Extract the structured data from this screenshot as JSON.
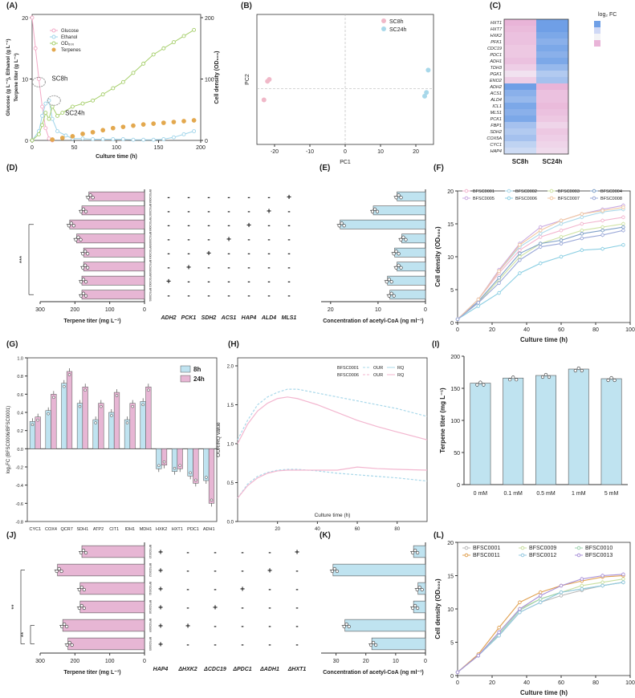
{
  "colors": {
    "pink": "#e7b6d4",
    "blue": "#bfe3f0",
    "grid": "#dddddd",
    "axis": "#333333",
    "glucose": "#f2a9c6",
    "ethanol": "#9fd4ea",
    "od": "#a6cf6b",
    "terp": "#e3a84e",
    "hm_pink": "#e9b4d8",
    "hm_blue": "#6f9fe6"
  },
  "panel_labels": [
    "(A)",
    "(B)",
    "(C)",
    "(D)",
    "(E)",
    "(F)",
    "(G)",
    "(H)",
    "(I)",
    "(J)",
    "(K)",
    "(L)"
  ],
  "chart_data": [
    {
      "id": "A",
      "type": "line",
      "xlabel": "Culture time (h)",
      "ylabel_left": "Glucose (g L⁻¹), Ethanol (g L⁻¹)",
      "ylabel_left2": "Terpene titer (g L⁻¹)",
      "ylabel_right": "Cell density (OD₆₀₀)",
      "xlim": [
        0,
        200
      ],
      "xticks": [
        "0",
        "50",
        "100",
        "150",
        "200"
      ],
      "ylim_left": [
        0,
        20
      ],
      "yticks_left": [
        "0",
        "10",
        "20"
      ],
      "ylim_right": [
        0,
        200
      ],
      "yticks_right": [
        "0",
        "100",
        "200"
      ],
      "annotations": [
        "SC8h",
        "SC24h"
      ],
      "legend": [
        "Glucose",
        "Ethanol",
        "OD₆₀₀",
        "Terpenes"
      ],
      "series": [
        {
          "name": "Glucose",
          "axis": "left",
          "x": [
            0,
            4,
            8,
            12,
            16,
            20,
            24
          ],
          "y": [
            20,
            15,
            10,
            5.5,
            2,
            0.3,
            0
          ]
        },
        {
          "name": "Ethanol",
          "axis": "left",
          "x": [
            0,
            8,
            12,
            16,
            20,
            24,
            30,
            40,
            48,
            60,
            72,
            84,
            96,
            108,
            120,
            132,
            144,
            156,
            168,
            180,
            192
          ],
          "y": [
            0,
            1.5,
            4,
            6,
            6.5,
            3.5,
            1.5,
            0.8,
            0.3,
            0.3,
            0.2,
            0.2,
            0.2,
            0.2,
            0.1,
            0.1,
            0.1,
            0.2,
            0.5,
            1.0,
            1.5
          ]
        },
        {
          "name": "OD₆₀₀",
          "axis": "right",
          "x": [
            0,
            8,
            12,
            16,
            20,
            24,
            30,
            36,
            48,
            60,
            72,
            84,
            96,
            108,
            120,
            132,
            144,
            156,
            168,
            180,
            192
          ],
          "y": [
            0,
            10,
            25,
            45,
            35,
            55,
            40,
            45,
            55,
            60,
            65,
            75,
            85,
            95,
            110,
            125,
            140,
            150,
            160,
            170,
            180
          ]
        },
        {
          "name": "Terpenes",
          "axis": "left2",
          "x": [
            24,
            36,
            48,
            60,
            72,
            84,
            96,
            108,
            120,
            132,
            144,
            156,
            168,
            180,
            192
          ],
          "y": [
            0.2,
            0.6,
            1,
            1.6,
            2,
            2.5,
            3,
            3.3,
            3.6,
            3.9,
            4.1,
            4.3,
            4.5,
            4.7,
            4.9
          ]
        }
      ]
    },
    {
      "id": "B",
      "type": "scatter",
      "xlabel": "PC1",
      "ylabel": "PC2",
      "xlim": [
        -25,
        25
      ],
      "xticks": [
        "-20",
        "-10",
        "0",
        "10",
        "20"
      ],
      "legend": [
        "SC8h",
        "SC24h"
      ],
      "series": [
        {
          "name": "SC8h",
          "x": [
            -23,
            -22,
            -21.5
          ],
          "y": [
            -3,
            2,
            2.5
          ]
        },
        {
          "name": "SC24h",
          "x": [
            22.5,
            23,
            23.5
          ],
          "y": [
            -2,
            -1,
            5
          ]
        }
      ]
    },
    {
      "id": "C",
      "type": "heatmap",
      "title": "log₂ FC",
      "columns": [
        "SC8h",
        "SC24h"
      ],
      "rows": [
        "HXT1",
        "HXT7",
        "HXK2",
        "PFK1",
        "CDC19",
        "PDC1",
        "ADH1",
        "TDH3",
        "PGK1",
        "ENO2",
        "ADH2",
        "ACS1",
        "ALD4",
        "ICL1",
        "MLS1",
        "PCK1",
        "FBP1",
        "SDH2",
        "COX5A",
        "CYC1",
        "HAP4"
      ],
      "values": [
        [
          1,
          -1
        ],
        [
          0.9,
          -1
        ],
        [
          0.8,
          -0.9
        ],
        [
          0.8,
          -0.8
        ],
        [
          0.7,
          -0.9
        ],
        [
          0.7,
          -0.8
        ],
        [
          0.8,
          -0.9
        ],
        [
          0.6,
          -0.7
        ],
        [
          0.3,
          -0.5
        ],
        [
          0.6,
          -0.6
        ],
        [
          -1,
          1
        ],
        [
          -0.8,
          0.8
        ],
        [
          -0.7,
          0.8
        ],
        [
          -0.9,
          0.9
        ],
        [
          -0.8,
          0.8
        ],
        [
          -0.9,
          0.7
        ],
        [
          -0.6,
          0.5
        ],
        [
          -0.5,
          0.7
        ],
        [
          -0.6,
          0.6
        ],
        [
          -0.4,
          0.5
        ],
        [
          -0.3,
          0.4
        ]
      ]
    },
    {
      "id": "D",
      "type": "bar",
      "orientation": "horizontal-reversed",
      "xlabel": "Terpene titer (mg L⁻¹)",
      "xlim": [
        0,
        300
      ],
      "xticks": [
        "300",
        "200",
        "100",
        "0"
      ],
      "categories": [
        "BFSC0008",
        "BFSC0007",
        "BFSC0006",
        "BFSC0005",
        "BFSC0004",
        "BFSC0003",
        "BFSC0002",
        "BFSC0001"
      ],
      "values": [
        160,
        180,
        215,
        195,
        175,
        175,
        180,
        180
      ],
      "significance": "***",
      "genes": [
        "ADH2",
        "PCK1",
        "SDH2",
        "ACS1",
        "HAP4",
        "ALD4",
        "MLS1"
      ],
      "matrix": [
        [
          "-",
          "-",
          "-",
          "-",
          "-",
          "-",
          "+"
        ],
        [
          "-",
          "-",
          "-",
          "-",
          "-",
          "+",
          "-"
        ],
        [
          "-",
          "-",
          "-",
          "-",
          "+",
          "-",
          "-"
        ],
        [
          "-",
          "-",
          "-",
          "+",
          "-",
          "-",
          "-"
        ],
        [
          "-",
          "-",
          "+",
          "-",
          "-",
          "-",
          "-"
        ],
        [
          "-",
          "+",
          "-",
          "-",
          "-",
          "-",
          "-"
        ],
        [
          "+",
          "-",
          "-",
          "-",
          "-",
          "-",
          "-"
        ],
        [
          "-",
          "-",
          "-",
          "-",
          "-",
          "-",
          "-"
        ]
      ]
    },
    {
      "id": "E",
      "type": "bar",
      "orientation": "horizontal-reversed",
      "xlabel": "Concentration of acetyl-CoA (ng ml⁻¹)",
      "xlim": [
        0,
        22
      ],
      "xticks": [
        "20",
        "10",
        "0"
      ],
      "values": [
        6,
        11,
        18,
        5,
        6.5,
        6,
        8,
        7.5
      ]
    },
    {
      "id": "F",
      "type": "line",
      "xlabel": "Culture time (h)",
      "ylabel": "Cell density (OD₆₀₀)",
      "xlim": [
        0,
        100
      ],
      "xticks": [
        "0",
        "20",
        "40",
        "60",
        "80",
        "100"
      ],
      "ylim": [
        0,
        20
      ],
      "yticks": [
        "0",
        "5",
        "10",
        "15",
        "20"
      ],
      "x": [
        0,
        12,
        24,
        36,
        48,
        60,
        72,
        84,
        96
      ],
      "series": [
        {
          "name": "BFSC0001",
          "values": [
            0.5,
            3.5,
            7.5,
            11,
            13,
            14,
            15,
            15.5,
            16
          ]
        },
        {
          "name": "BFSC0002",
          "values": [
            0.5,
            3.5,
            7.8,
            11.5,
            13.5,
            15,
            16,
            16.8,
            17.2
          ]
        },
        {
          "name": "BFSC0003",
          "values": [
            0.5,
            3,
            6.5,
            10,
            12,
            13,
            14,
            14.5,
            15
          ]
        },
        {
          "name": "BFSC0004",
          "values": [
            0.5,
            3.2,
            6.8,
            10.5,
            12,
            12.5,
            13.5,
            14,
            14.5
          ]
        },
        {
          "name": "BFSC0005",
          "values": [
            0.5,
            3.5,
            8,
            12,
            14.5,
            15.5,
            16.5,
            17.2,
            17.8
          ]
        },
        {
          "name": "BFSC0006",
          "values": [
            0.5,
            2.5,
            4.5,
            7.5,
            9,
            10,
            11,
            11.2,
            11.8
          ]
        },
        {
          "name": "BFSC0007",
          "values": [
            0.5,
            3.5,
            7.8,
            11.8,
            14,
            15.5,
            16.5,
            17,
            17.5
          ]
        },
        {
          "name": "BFSC0008",
          "values": [
            0.5,
            3,
            6,
            9.5,
            11.5,
            12,
            12.8,
            13.3,
            14
          ]
        }
      ]
    },
    {
      "id": "G",
      "type": "bar",
      "ylabel": "log₂FC (BFSC0006/BFSC0001)",
      "ylim": [
        -0.8,
        1.0
      ],
      "yticks": [
        "-0.8",
        "-0.6",
        "-0.4",
        "-0.2",
        "0.0",
        "0.2",
        "0.4",
        "0.6",
        "0.8",
        "1.0"
      ],
      "categories": [
        "CYC1",
        "COX4",
        "QCR7",
        "SDH1",
        "ATP2",
        "CIT1",
        "IDH1",
        "MDH1",
        "HXK2",
        "HXT1",
        "PDC1",
        "ADH1"
      ],
      "series": [
        {
          "name": "8h",
          "values": [
            0.3,
            0.42,
            0.72,
            0.5,
            0.32,
            0.4,
            0.32,
            0.52,
            -0.22,
            -0.25,
            -0.3,
            -0.35
          ]
        },
        {
          "name": "24h",
          "values": [
            0.35,
            0.6,
            0.85,
            0.68,
            0.5,
            0.62,
            0.5,
            0.68,
            -0.18,
            -0.22,
            -0.38,
            -0.6
          ]
        }
      ]
    },
    {
      "id": "H",
      "type": "line",
      "xlabel": "Culture time (h)",
      "ylabel": "OUR/RQ value",
      "xlim": [
        0,
        95
      ],
      "xticks": [
        "20",
        "40",
        "60",
        "80"
      ],
      "ylim": [
        0,
        2.0
      ],
      "yticks": [
        "0.0",
        "0.5",
        "1.0",
        "1.5",
        "2.0"
      ],
      "legend_rows": [
        [
          "BFSC0001",
          "OUR",
          "RQ"
        ],
        [
          "BFSC0006",
          "OUR",
          "RQ"
        ]
      ],
      "x": [
        0,
        5,
        10,
        15,
        20,
        25,
        30,
        40,
        50,
        60,
        70,
        80,
        95
      ],
      "series": [
        {
          "name": "BFSC0001 OUR",
          "values": [
            1.05,
            1.3,
            1.5,
            1.6,
            1.66,
            1.7,
            1.7,
            1.65,
            1.6,
            1.55,
            1.5,
            1.45,
            1.35
          ]
        },
        {
          "name": "BFSC0006 OUR",
          "values": [
            1.0,
            1.25,
            1.42,
            1.52,
            1.58,
            1.6,
            1.58,
            1.5,
            1.4,
            1.3,
            1.22,
            1.15,
            1.05
          ]
        },
        {
          "name": "BFSC0001 RQ",
          "values": [
            0.3,
            0.48,
            0.58,
            0.63,
            0.66,
            0.67,
            0.67,
            0.65,
            0.62,
            0.6,
            0.58,
            0.56,
            0.52
          ]
        },
        {
          "name": "BFSC0006 RQ",
          "values": [
            0.3,
            0.46,
            0.56,
            0.62,
            0.65,
            0.66,
            0.66,
            0.66,
            0.66,
            0.7,
            0.68,
            0.67,
            0.66
          ]
        }
      ]
    },
    {
      "id": "I",
      "type": "bar",
      "ylabel": "Terpene titer (mg L⁻¹)",
      "ylim": [
        0,
        200
      ],
      "yticks": [
        "0",
        "50",
        "100",
        "150",
        "200"
      ],
      "categories": [
        "0 mM",
        "0.1 mM",
        "0.5 mM",
        "1 mM",
        "5 mM"
      ],
      "values": [
        158,
        166,
        170,
        180,
        165
      ]
    },
    {
      "id": "J",
      "type": "bar",
      "orientation": "horizontal-reversed",
      "xlabel": "Terpene titer (mg L⁻¹)",
      "xlim": [
        0,
        300
      ],
      "xticks": [
        "300",
        "200",
        "100",
        "0"
      ],
      "categories": [
        "BFSC0013",
        "BFSC0012",
        "BFSC0011",
        "BFSC0010",
        "BFSC0009",
        "BFSC0005"
      ],
      "values": [
        180,
        250,
        185,
        185,
        235,
        220
      ],
      "significance": [
        "**",
        "**"
      ],
      "genes": [
        "HAP4",
        "ΔHXK2",
        "ΔCDC19",
        "ΔPDC1",
        "ΔADH1",
        "ΔHXT1"
      ],
      "matrix": [
        [
          "+",
          "-",
          "-",
          "-",
          "-",
          "+"
        ],
        [
          "+",
          "-",
          "-",
          "-",
          "+",
          "-"
        ],
        [
          "+",
          "-",
          "-",
          "+",
          "-",
          "-"
        ],
        [
          "+",
          "-",
          "+",
          "-",
          "-",
          "-"
        ],
        [
          "+",
          "+",
          "-",
          "-",
          "-",
          "-"
        ],
        [
          "+",
          "-",
          "-",
          "-",
          "-",
          "-"
        ]
      ]
    },
    {
      "id": "K",
      "type": "bar",
      "orientation": "horizontal-reversed",
      "xlabel": "Concentration of acetyl-CoA (ng ml⁻¹)",
      "xlim": [
        0,
        35
      ],
      "xticks": [
        "30",
        "20",
        "10",
        "0"
      ],
      "values": [
        4,
        31,
        2.5,
        4,
        27,
        18
      ]
    },
    {
      "id": "L",
      "type": "line",
      "xlabel": "Culture time (h)",
      "ylabel": "Cell density (OD₆₀₀)",
      "xlim": [
        0,
        100
      ],
      "xticks": [
        "0",
        "20",
        "40",
        "60",
        "80",
        "100"
      ],
      "ylim": [
        0,
        20
      ],
      "yticks": [
        "0",
        "5",
        "10",
        "15",
        "20"
      ],
      "x": [
        0,
        12,
        24,
        36,
        48,
        60,
        72,
        84,
        96
      ],
      "series": [
        {
          "name": "BFSC0001",
          "values": [
            0.5,
            3,
            6,
            9.5,
            11,
            12,
            12.8,
            13.5,
            14
          ]
        },
        {
          "name": "BFSC0009",
          "values": [
            0.5,
            3,
            6.5,
            10,
            11.5,
            12.5,
            13.5,
            14,
            14.5
          ]
        },
        {
          "name": "BFSC0010",
          "values": [
            0.5,
            3,
            6.2,
            9.8,
            11.5,
            12.5,
            13,
            13.5,
            14
          ]
        },
        {
          "name": "BFSC0011",
          "values": [
            0.5,
            3.2,
            7.2,
            11,
            12.5,
            13.5,
            14.2,
            14.8,
            15
          ]
        },
        {
          "name": "BFSC0012",
          "values": [
            0.5,
            3,
            6,
            9.5,
            11,
            12.5,
            13,
            13.5,
            14
          ]
        },
        {
          "name": "BFSC0013",
          "values": [
            0.5,
            3,
            6.5,
            10,
            12,
            13.5,
            14.5,
            15,
            15.2
          ]
        }
      ]
    }
  ]
}
